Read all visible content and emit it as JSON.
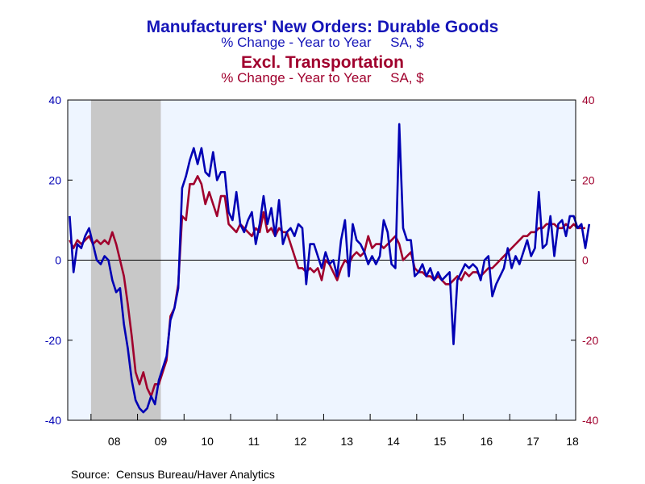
{
  "chart_data": {
    "type": "line",
    "title": "Manufacturers' New Orders: Durable Goods",
    "subtitle": "% Change - Year to Year     SA, $",
    "title2": "Excl. Transportation",
    "subtitle2": "% Change - Year to Year     SA, $",
    "source": "Source:  Census Bureau/Haver Analytics",
    "ylim": [
      -40,
      40
    ],
    "yticks": [
      "40",
      "20",
      "0",
      "-20",
      "-40"
    ],
    "xticks": [
      "08",
      "09",
      "10",
      "11",
      "12",
      "13",
      "14",
      "15",
      "16",
      "17",
      "18"
    ],
    "x_start": "2007-07",
    "recession": {
      "start": "2008-01",
      "end": "2009-06"
    },
    "grid": false,
    "colors": {
      "total": "#0000b4",
      "excl": "#a0002d",
      "plot_bg": "#eef5ff",
      "recession": "#c8c8c8",
      "title_blue": "#1515b8",
      "title_red": "#a0002d",
      "axis_left": "#0000b4",
      "axis_right": "#a0002d"
    },
    "series": [
      {
        "key": "total",
        "values": [
          11,
          -3,
          4,
          3,
          6,
          8,
          4,
          0,
          -1,
          1,
          0,
          -5,
          -8,
          -7,
          -16,
          -22,
          -30,
          -35,
          -37,
          -38,
          -37,
          -34,
          -36,
          -30,
          -27,
          -24,
          -15,
          -12,
          -7,
          18,
          21,
          25,
          28,
          24,
          28,
          22,
          21,
          27,
          20,
          22,
          22,
          12,
          10,
          17,
          9,
          7,
          10,
          12,
          4,
          9,
          16,
          9,
          13,
          6,
          15,
          4,
          7,
          8,
          6,
          9,
          8,
          -6,
          4,
          4,
          1,
          -2,
          2,
          -1,
          0,
          -4,
          5,
          10,
          -4,
          9,
          5,
          4,
          2,
          -1,
          1,
          -1,
          1,
          10,
          7,
          -1,
          -2,
          34,
          8,
          5,
          5,
          -4,
          -3,
          -1,
          -4,
          -2,
          -5,
          -3,
          -5,
          -4,
          -3,
          -21,
          -5,
          -3,
          -1,
          -2,
          -1,
          -2,
          -5,
          0,
          1,
          -9,
          -6,
          -4,
          -2,
          3,
          -2,
          1,
          -1,
          2,
          5,
          1,
          3,
          17,
          3,
          4,
          11,
          1,
          9,
          10,
          6,
          11,
          11,
          8,
          9,
          3,
          9
        ]
      },
      {
        "key": "excl",
        "values": [
          5,
          3,
          5,
          4,
          5,
          6,
          4,
          5,
          4,
          5,
          4,
          7,
          4,
          0,
          -4,
          -11,
          -19,
          -28,
          -31,
          -28,
          -32,
          -34,
          -31,
          -31,
          -28,
          -25,
          -14,
          -12,
          -6,
          11,
          10,
          19,
          19,
          21,
          19,
          14,
          17,
          14,
          11,
          16,
          16,
          9,
          8,
          7,
          9,
          8,
          7,
          6,
          8,
          7,
          12,
          7,
          8,
          6,
          8,
          7,
          7,
          4,
          1,
          -2,
          -2,
          -3,
          -2,
          -3,
          -2,
          -5,
          0,
          -1,
          -3,
          -5,
          -2,
          0,
          -1,
          1,
          2,
          1,
          2,
          6,
          3,
          4,
          4,
          3,
          4,
          5,
          6,
          4,
          0,
          1,
          2,
          -2,
          -3,
          -3,
          -4,
          -4,
          -5,
          -4,
          -5,
          -6,
          -6,
          -5,
          -4,
          -5,
          -3,
          -4,
          -3,
          -3,
          -4,
          -3,
          -2,
          -2,
          -1,
          0,
          1,
          2,
          3,
          4,
          5,
          6,
          6,
          7,
          7,
          8,
          8,
          9,
          9,
          9,
          8,
          8,
          9,
          8,
          9,
          8,
          8,
          8
        ]
      }
    ]
  }
}
